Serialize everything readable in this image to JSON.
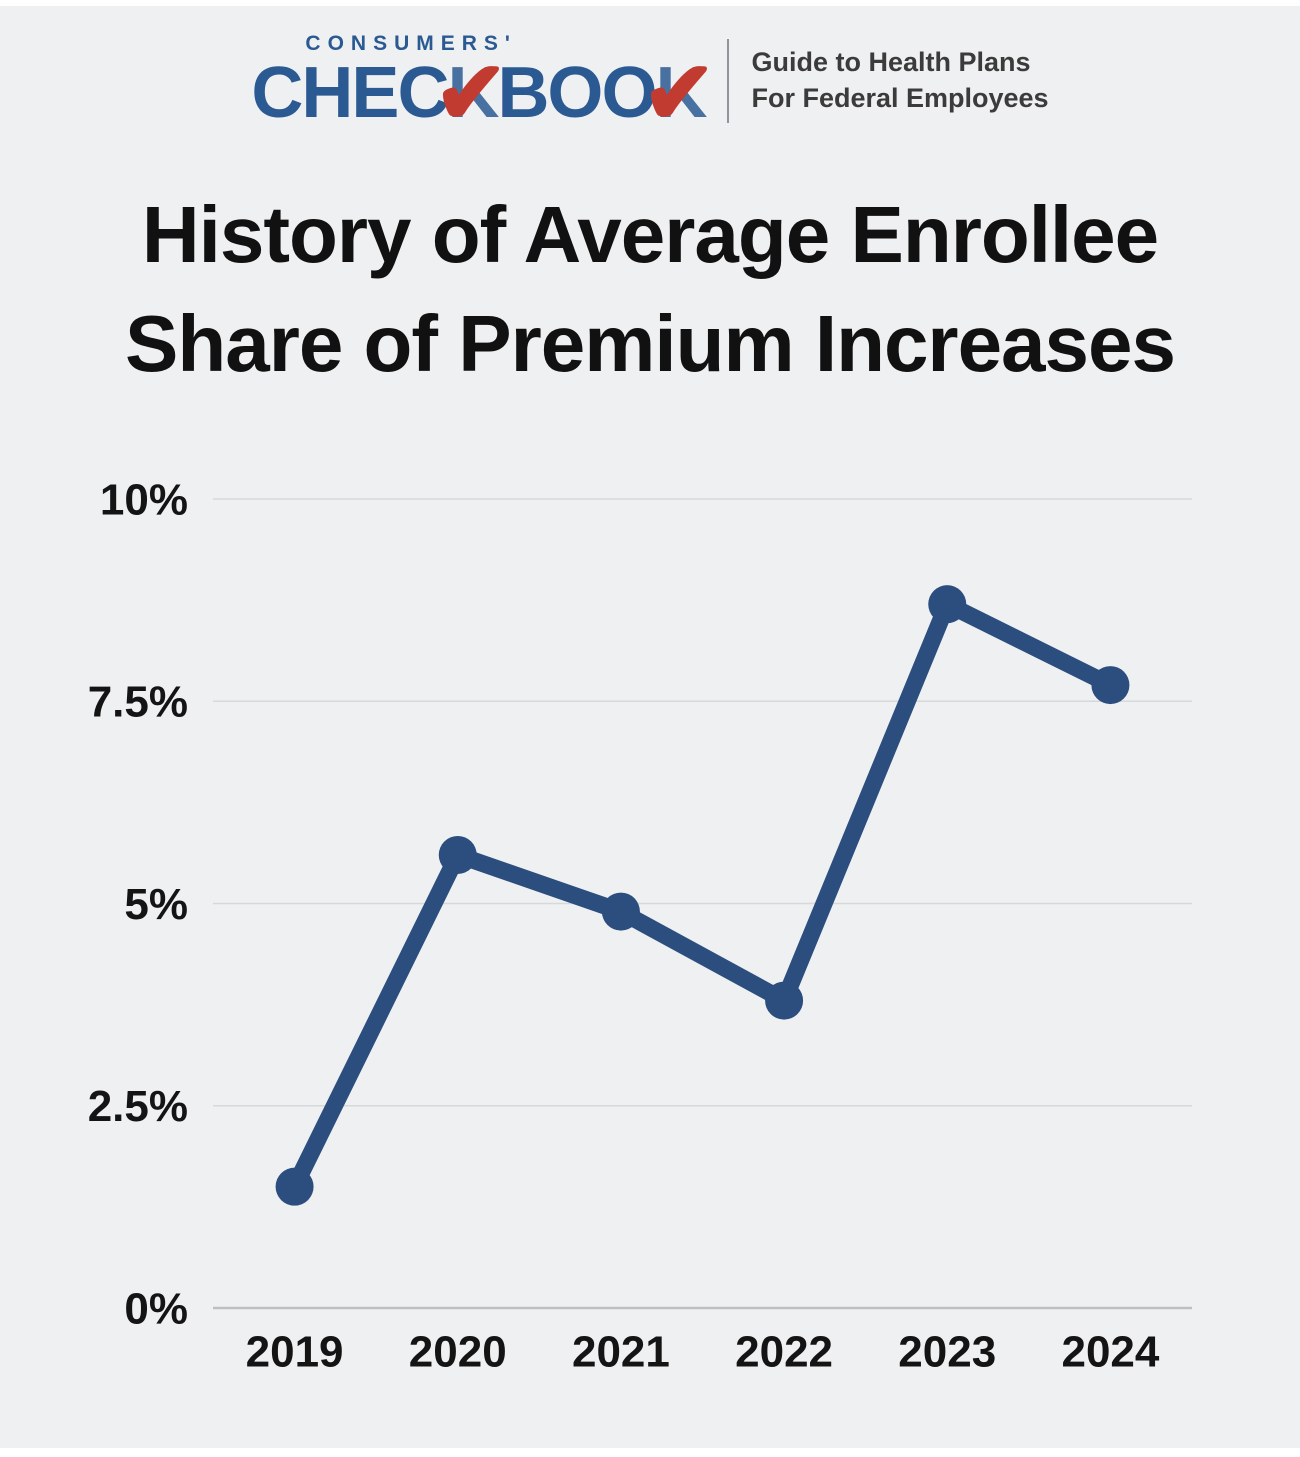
{
  "logo": {
    "consumers": "CONSUMERS'",
    "checkbook_part1": "CHEC",
    "checkbook_k1": "K",
    "checkbook_part2": "BOO",
    "checkbook_k2": "K",
    "check_glyph": "✔",
    "tagline_line1": "Guide to Health Plans",
    "tagline_line2": "For Federal Employees"
  },
  "title": {
    "line1": "History of Average Enrollee",
    "line2": "Share of Premium Increases"
  },
  "colors": {
    "logo_blue": "#2b5a92",
    "logo_red": "#c23b31",
    "line_blue": "#2c4e7e",
    "background": "#eff0f2",
    "gridline": "#d7d8da",
    "axis_line": "#bdbfc2",
    "label_color": "#141414"
  },
  "chart_data": {
    "type": "line",
    "title": "History of Average Enrollee Share of Premium Increases",
    "categories": [
      "2019",
      "2020",
      "2021",
      "2022",
      "2023",
      "2024"
    ],
    "series": [
      {
        "name": "Average enrollee share of premium increase",
        "values": [
          1.5,
          5.6,
          4.9,
          3.8,
          8.7,
          7.7
        ]
      }
    ],
    "xlabel": "",
    "ylabel": "",
    "ylim": [
      0,
      10
    ],
    "yticks": [
      0,
      2.5,
      5,
      7.5,
      10
    ],
    "ytick_labels": [
      "0%",
      "2.5%",
      "5%",
      "7.5%",
      "10%"
    ],
    "grid": true,
    "legend": false,
    "line_color": "#2c4e7e",
    "marker": "circle"
  }
}
